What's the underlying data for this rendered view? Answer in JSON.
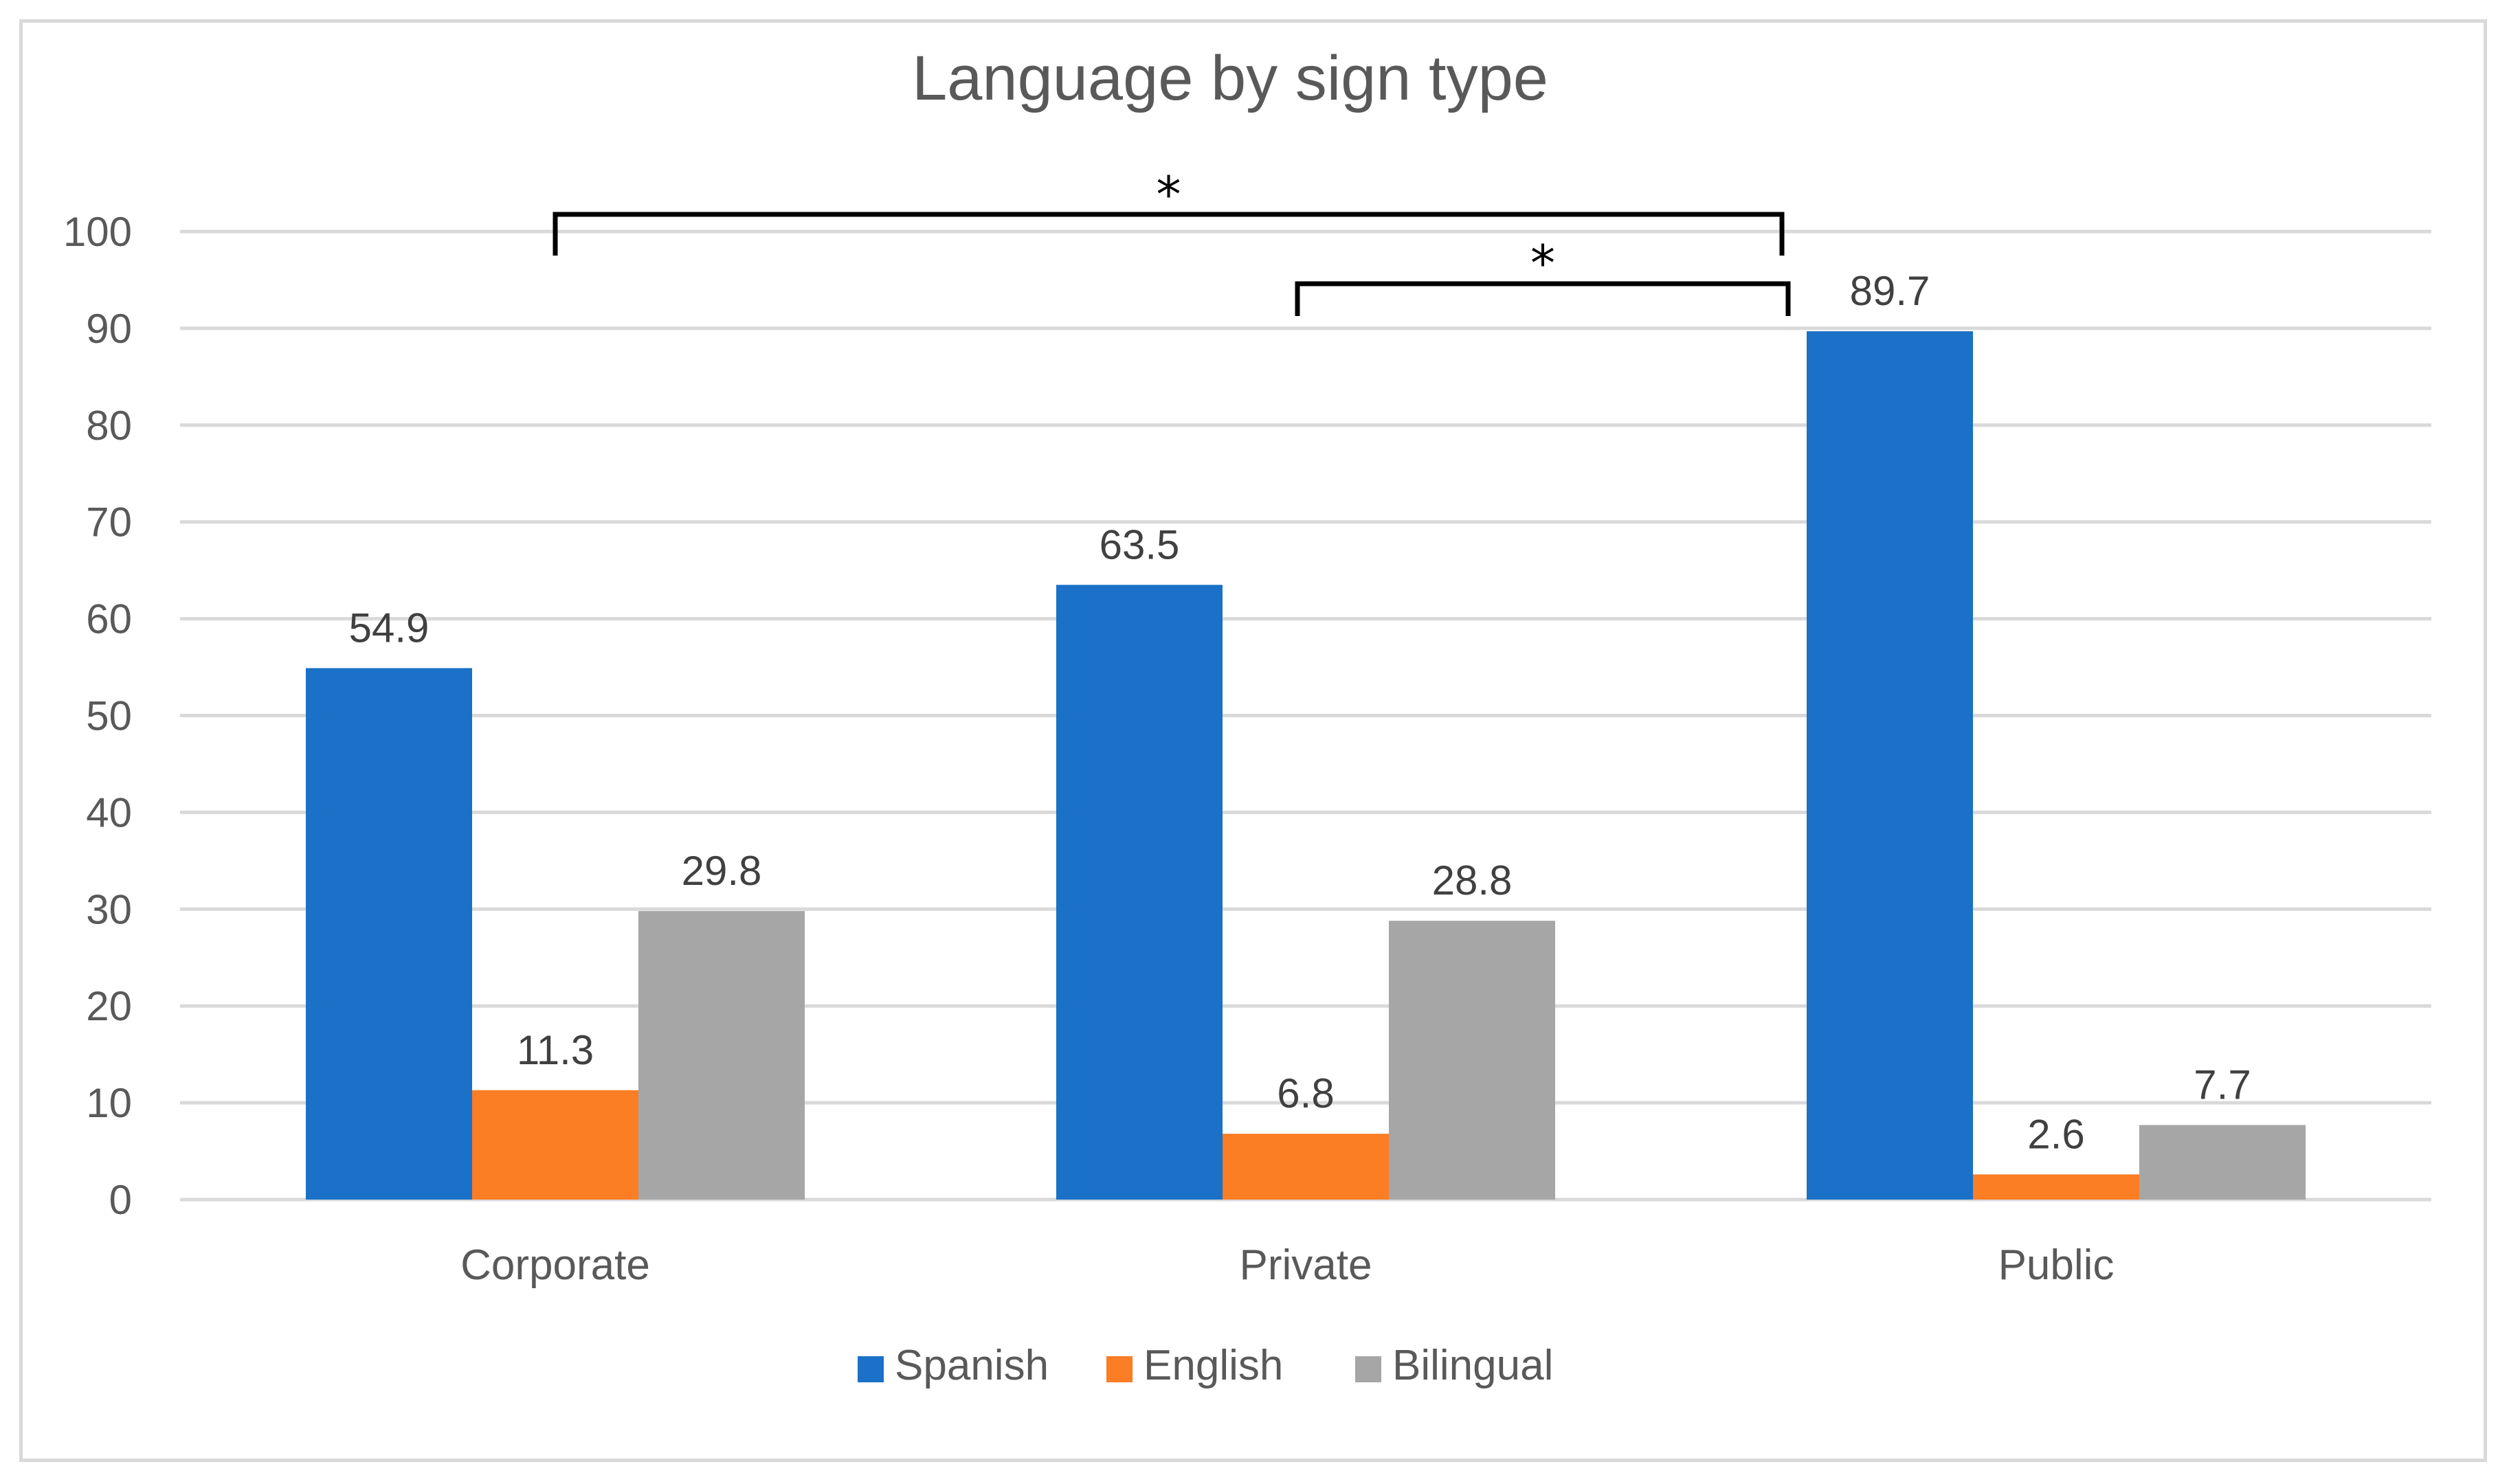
{
  "chart_data": {
    "type": "bar",
    "title": "Language by sign type",
    "categories": [
      "Corporate",
      "Private",
      "Public"
    ],
    "series": [
      {
        "name": "Spanish",
        "values": [
          54.9,
          63.5,
          89.7
        ],
        "color": "#1a71c7"
      },
      {
        "name": "English",
        "values": [
          11.3,
          6.8,
          2.6
        ],
        "color": "#fb7d24"
      },
      {
        "name": "Bilingual",
        "values": [
          29.8,
          28.8,
          7.7
        ],
        "color": "#a6a6a6"
      }
    ],
    "ylim": [
      0,
      100
    ],
    "yticks": [
      0,
      10,
      20,
      30,
      40,
      50,
      60,
      70,
      80,
      90,
      100
    ],
    "grid": true,
    "legend": "bottom",
    "annotations": [
      {
        "label": "*",
        "from_category": "Corporate",
        "to_category": "Public",
        "type": "significance-bracket"
      },
      {
        "label": "*",
        "from_category": "Private",
        "to_category": "Public",
        "type": "significance-bracket"
      }
    ]
  }
}
